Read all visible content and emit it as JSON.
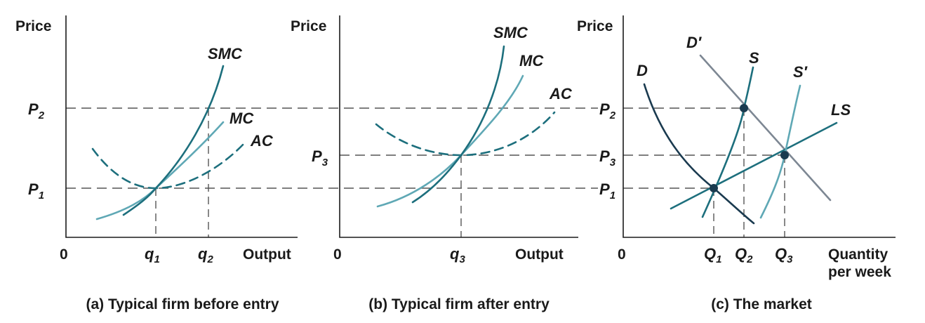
{
  "colors": {
    "dark_teal": "#1d6f7d",
    "light_teal": "#5fa8b5",
    "navy": "#1a3a4f",
    "gray": "#7d8793",
    "text": "#1a1a1a"
  },
  "panel_a": {
    "y_label": "Price",
    "x_label": "Output",
    "origin": "0",
    "caption": "(a) Typical firm before entry",
    "p2": "P",
    "p2_sub": "2",
    "p1": "P",
    "p1_sub": "1",
    "q1": "q",
    "q1_sub": "1",
    "q2": "q",
    "q2_sub": "2",
    "smc": "SMC",
    "mc": "MC",
    "ac": "AC"
  },
  "panel_b": {
    "y_label": "Price",
    "x_label": "Output",
    "origin": "0",
    "caption": "(b) Typical firm after entry",
    "p3": "P",
    "p3_sub": "3",
    "q3": "q",
    "q3_sub": "3",
    "smc": "SMC",
    "mc": "MC",
    "ac": "AC"
  },
  "panel_c": {
    "y_label": "Price",
    "x_label_line1": "Quantity",
    "x_label_line2": "per week",
    "origin": "0",
    "caption": "(c) The market",
    "p2": "P",
    "p2_sub": "2",
    "p3": "P",
    "p3_sub": "3",
    "p1": "P",
    "p1_sub": "1",
    "Q1": "Q",
    "Q1_sub": "1",
    "Q2": "Q",
    "Q2_sub": "2",
    "Q3": "Q",
    "Q3_sub": "3",
    "d": "D",
    "d_prime": "D′",
    "s": "S",
    "s_prime": "S′",
    "ls": "LS"
  }
}
